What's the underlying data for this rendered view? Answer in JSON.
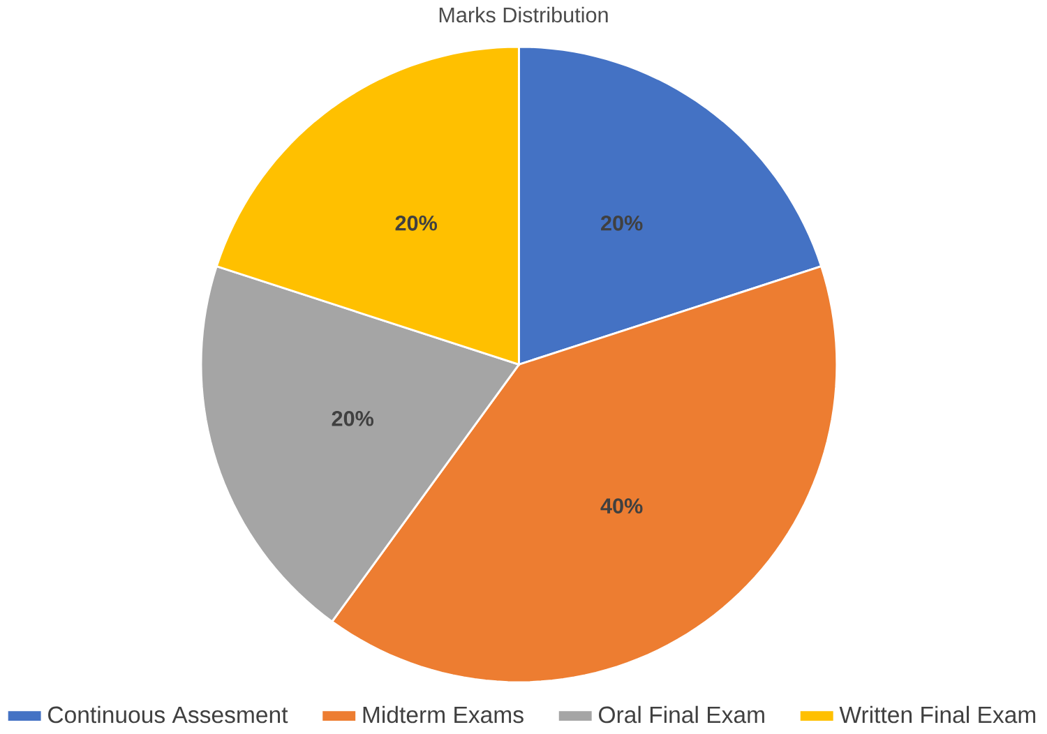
{
  "chart_data": {
    "type": "pie",
    "title": "Marks Distribution",
    "categories": [
      "Continuous Assesment",
      "Midterm Exams",
      "Oral Final Exam",
      "Written Final Exam"
    ],
    "values": [
      20,
      40,
      20,
      20
    ],
    "colors": [
      "#4472c4",
      "#ed7d31",
      "#a5a5a5",
      "#ffc000"
    ],
    "value_labels": [
      "20%",
      "40%",
      "20%",
      "20%"
    ],
    "legend": "bottom"
  }
}
